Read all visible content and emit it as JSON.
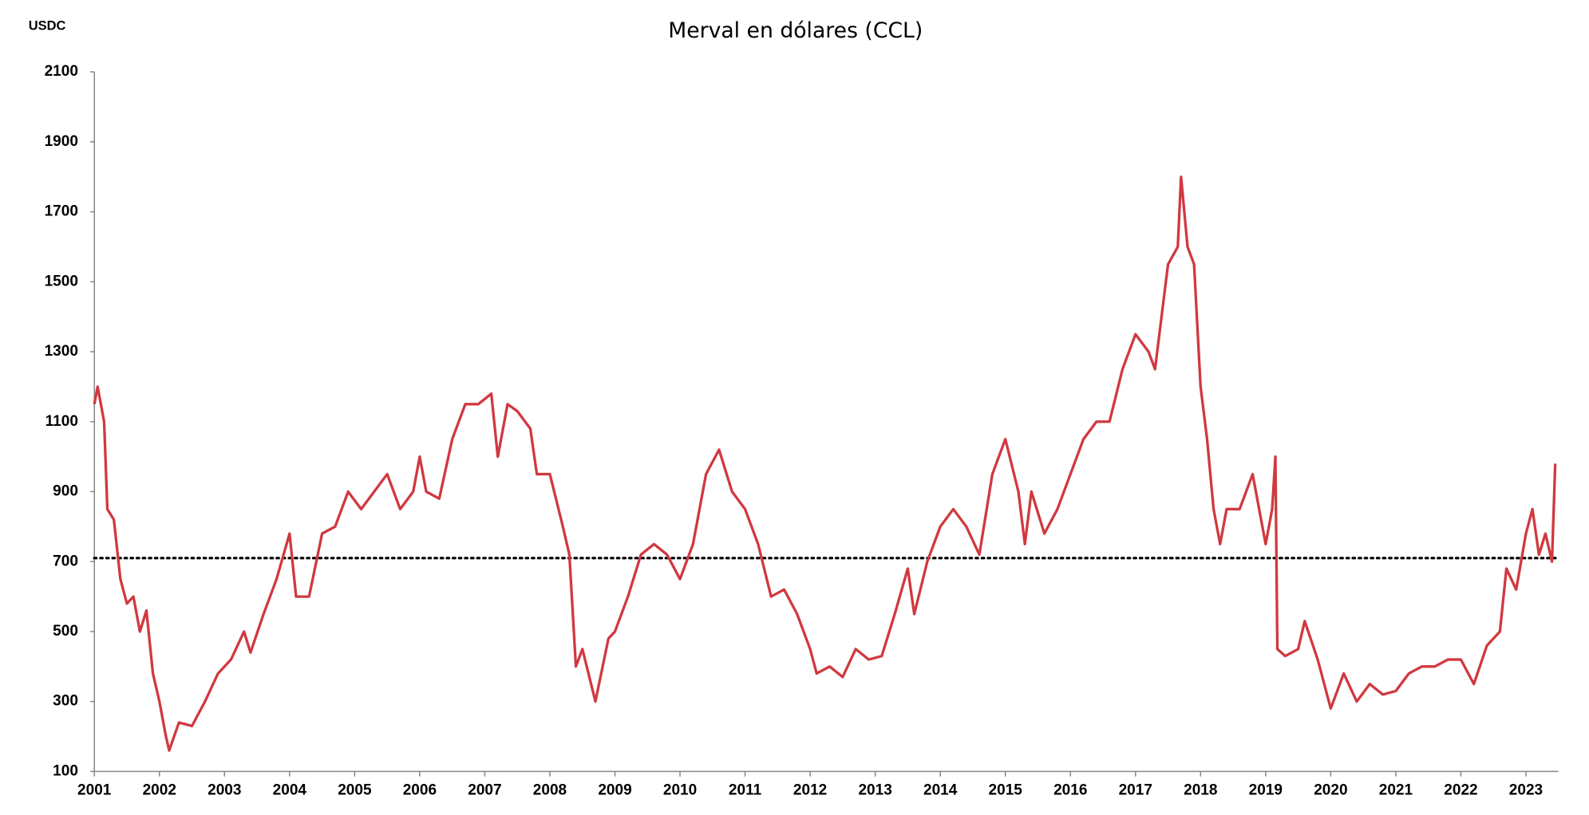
{
  "chart_data": {
    "type": "line",
    "title": "Merval en dólares (CCL)",
    "y_label": "USDC",
    "xlim": [
      2001,
      2023.5
    ],
    "xticks": [
      2001,
      2002,
      2003,
      2004,
      2005,
      2006,
      2007,
      2008,
      2009,
      2010,
      2011,
      2012,
      2013,
      2014,
      2015,
      2016,
      2017,
      2018,
      2019,
      2020,
      2021,
      2022,
      2023
    ],
    "ylim": [
      100,
      2100
    ],
    "yticks": [
      100,
      300,
      500,
      700,
      900,
      1100,
      1300,
      1500,
      1700,
      1900,
      2100
    ],
    "reference_line": 710,
    "reference_color": "#000000",
    "grid": false,
    "series": [
      {
        "name": "Merval",
        "color": "#d0393f",
        "x": [
          2001.0,
          2001.05,
          2001.15,
          2001.2,
          2001.3,
          2001.4,
          2001.5,
          2001.6,
          2001.7,
          2001.8,
          2001.9,
          2002.0,
          2002.1,
          2002.15,
          2002.3,
          2002.5,
          2002.7,
          2002.9,
          2003.1,
          2003.3,
          2003.4,
          2003.6,
          2003.8,
          2004.0,
          2004.1,
          2004.3,
          2004.5,
          2004.7,
          2004.9,
          2005.1,
          2005.3,
          2005.5,
          2005.7,
          2005.9,
          2006.0,
          2006.1,
          2006.3,
          2006.5,
          2006.7,
          2006.9,
          2007.1,
          2007.2,
          2007.35,
          2007.5,
          2007.7,
          2007.8,
          2008.0,
          2008.2,
          2008.3,
          2008.4,
          2008.5,
          2008.7,
          2008.9,
          2009.0,
          2009.2,
          2009.4,
          2009.6,
          2009.8,
          2010.0,
          2010.2,
          2010.4,
          2010.6,
          2010.8,
          2011.0,
          2011.2,
          2011.4,
          2011.6,
          2011.8,
          2012.0,
          2012.1,
          2012.3,
          2012.5,
          2012.7,
          2012.9,
          2013.1,
          2013.3,
          2013.5,
          2013.6,
          2013.8,
          2014.0,
          2014.2,
          2014.4,
          2014.6,
          2014.8,
          2015.0,
          2015.2,
          2015.3,
          2015.4,
          2015.6,
          2015.8,
          2016.0,
          2016.2,
          2016.4,
          2016.6,
          2016.8,
          2017.0,
          2017.2,
          2017.3,
          2017.5,
          2017.65,
          2017.7,
          2017.8,
          2017.9,
          2018.0,
          2018.1,
          2018.2,
          2018.3,
          2018.4,
          2018.6,
          2018.8,
          2019.0,
          2019.1,
          2019.15,
          2019.18,
          2019.3,
          2019.5,
          2019.6,
          2019.8,
          2020.0,
          2020.2,
          2020.4,
          2020.6,
          2020.8,
          2021.0,
          2021.2,
          2021.4,
          2021.6,
          2021.8,
          2022.0,
          2022.2,
          2022.4,
          2022.6,
          2022.7,
          2022.85,
          2023.0,
          2023.1,
          2023.2,
          2023.3,
          2023.4,
          2023.45
        ],
        "values": [
          1150,
          1200,
          1100,
          850,
          820,
          650,
          580,
          600,
          500,
          560,
          380,
          300,
          200,
          160,
          240,
          230,
          300,
          380,
          420,
          500,
          440,
          550,
          650,
          780,
          600,
          600,
          780,
          800,
          900,
          850,
          900,
          950,
          850,
          900,
          1000,
          900,
          880,
          1050,
          1150,
          1150,
          1180,
          1000,
          1150,
          1130,
          1080,
          950,
          950,
          800,
          720,
          400,
          450,
          300,
          480,
          500,
          600,
          720,
          750,
          720,
          650,
          750,
          950,
          1020,
          900,
          850,
          750,
          600,
          620,
          550,
          450,
          380,
          400,
          370,
          450,
          420,
          430,
          550,
          680,
          550,
          700,
          800,
          850,
          800,
          720,
          950,
          1050,
          900,
          750,
          900,
          780,
          850,
          950,
          1050,
          1100,
          1100,
          1250,
          1350,
          1300,
          1250,
          1550,
          1600,
          1800,
          1600,
          1550,
          1200,
          1050,
          850,
          750,
          850,
          850,
          950,
          750,
          850,
          1000,
          450,
          430,
          450,
          530,
          420,
          280,
          380,
          300,
          350,
          320,
          330,
          380,
          400,
          400,
          420,
          420,
          350,
          460,
          500,
          680,
          620,
          780,
          850,
          720,
          780,
          700,
          980
        ]
      }
    ]
  }
}
